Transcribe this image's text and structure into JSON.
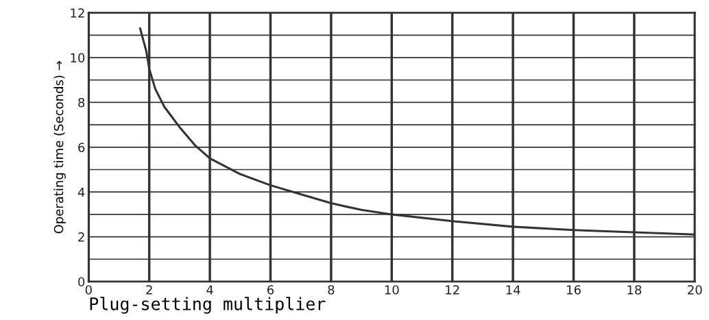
{
  "chart_data": {
    "type": "line",
    "xlabel": "Plug-setting multiplier",
    "ylabel": "Operating time (Seconds) →",
    "x": [
      1.7,
      1.9,
      2,
      2.2,
      2.5,
      3,
      3.5,
      4,
      5,
      6,
      7,
      8,
      9,
      10,
      12,
      14,
      16,
      18,
      20
    ],
    "series": [
      {
        "color": "#333333",
        "values": [
          11.3,
          10.3,
          9.5,
          8.6,
          7.8,
          6.9,
          6.1,
          5.5,
          4.8,
          4.3,
          3.9,
          3.5,
          3.2,
          3.0,
          2.7,
          2.45,
          2.3,
          2.2,
          2.1
        ]
      }
    ],
    "xlim": [
      0,
      20
    ],
    "xticks": [
      0,
      2,
      4,
      6,
      8,
      10,
      12,
      14,
      16,
      18,
      20
    ],
    "ylim": [
      0,
      12
    ],
    "yticks": [
      0,
      {
        "value": 1,
        "label": null
      },
      2,
      {
        "value": 3,
        "label": null
      },
      4,
      {
        "value": 5,
        "label": null
      },
      6,
      {
        "value": 7,
        "label": null
      },
      8,
      {
        "value": 9,
        "label": null
      },
      10,
      {
        "value": 11,
        "label": null
      },
      12
    ],
    "grid": true,
    "marker": "none",
    "line_style": "solid"
  }
}
